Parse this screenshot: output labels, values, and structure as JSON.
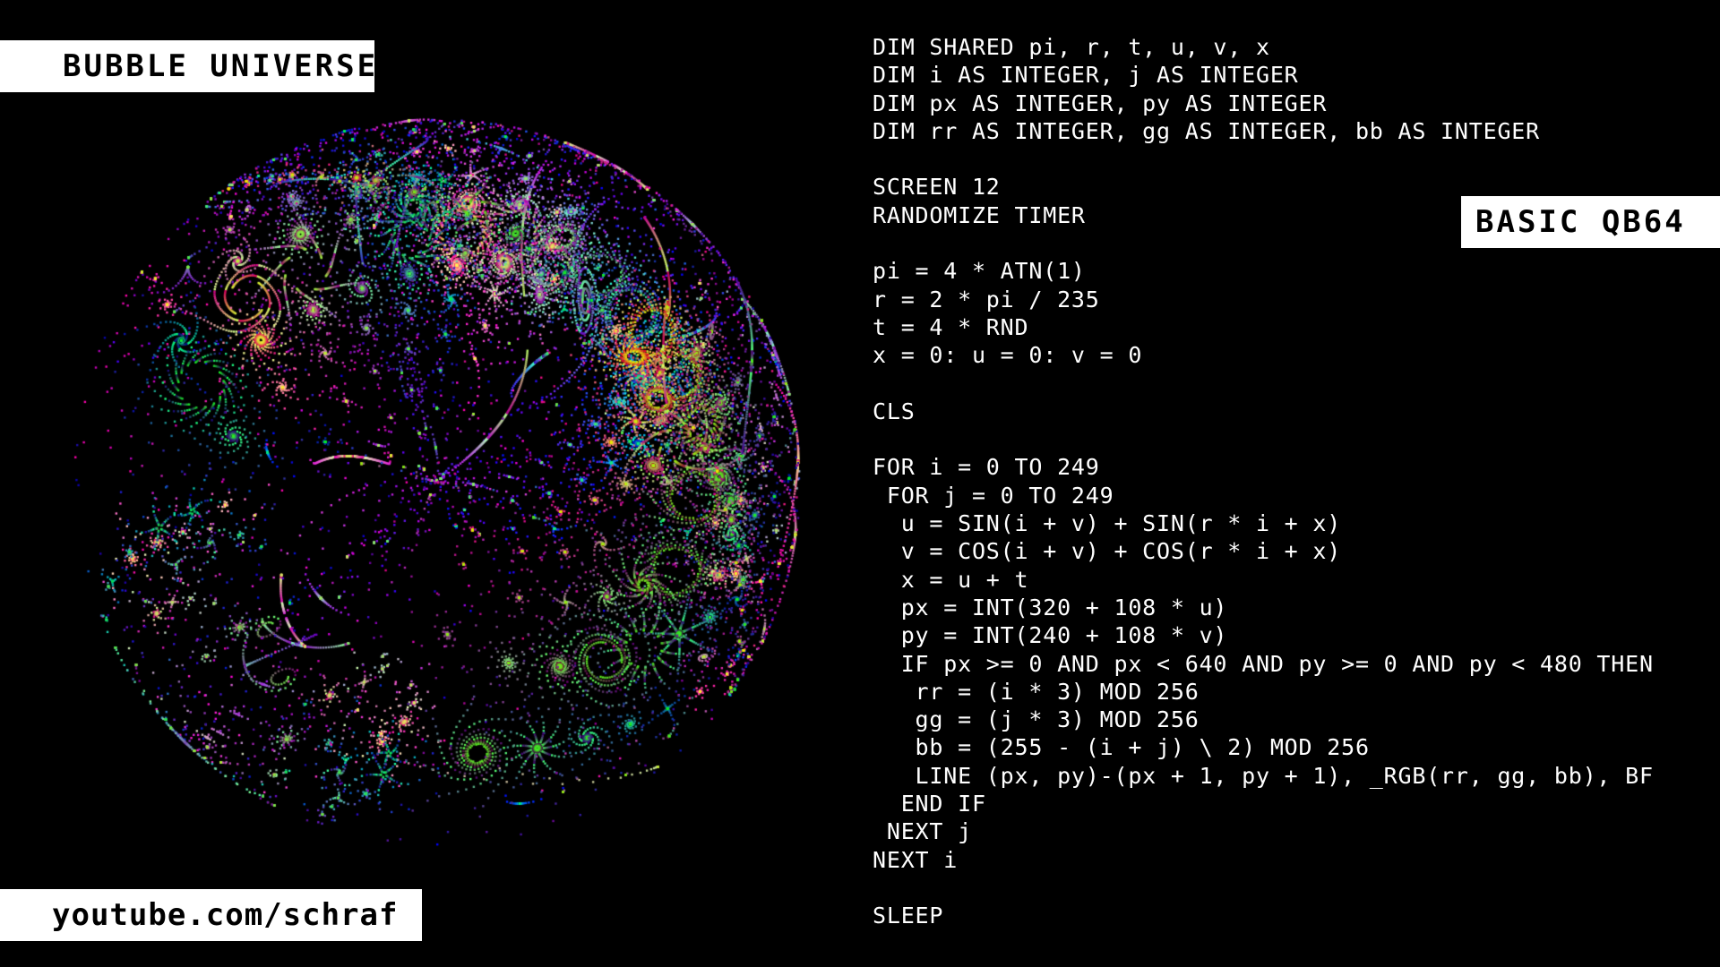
{
  "title_label": "BUBBLE UNIVERSE",
  "language_label": "BASIC QB64",
  "channel_label": "youtube.com/schraf",
  "code_lines": [
    "DIM SHARED pi, r, t, u, v, x",
    "DIM i AS INTEGER, j AS INTEGER",
    "DIM px AS INTEGER, py AS INTEGER",
    "DIM rr AS INTEGER, gg AS INTEGER, bb AS INTEGER",
    "",
    "SCREEN 12",
    "RANDOMIZE TIMER",
    "",
    "pi = 4 * ATN(1)",
    "r = 2 * pi / 235",
    "t = 4 * RND",
    "x = 0: u = 0: v = 0",
    "",
    "CLS",
    "",
    "FOR i = 0 TO 249",
    " FOR j = 0 TO 249",
    "  u = SIN(i + v) + SIN(r * i + x)",
    "  v = COS(i + v) + COS(r * i + x)",
    "  x = u + t",
    "  px = INT(320 + 108 * u)",
    "  py = INT(240 + 108 * v)",
    "  IF px >= 0 AND px < 640 AND py >= 0 AND py < 480 THEN",
    "   rr = (i * 3) MOD 256",
    "   gg = (j * 3) MOD 256",
    "   bb = (255 - (i + j) \\ 2) MOD 256",
    "   LINE (px, py)-(px + 1, py + 1), _RGB(rr, gg, bb), BF",
    "  END IF",
    " NEXT j",
    "NEXT i",
    "",
    "SLEEP"
  ],
  "colors": {
    "background": "#000000",
    "label_background": "#ffffff",
    "label_text": "#000000",
    "code_text": "#ffffff"
  }
}
